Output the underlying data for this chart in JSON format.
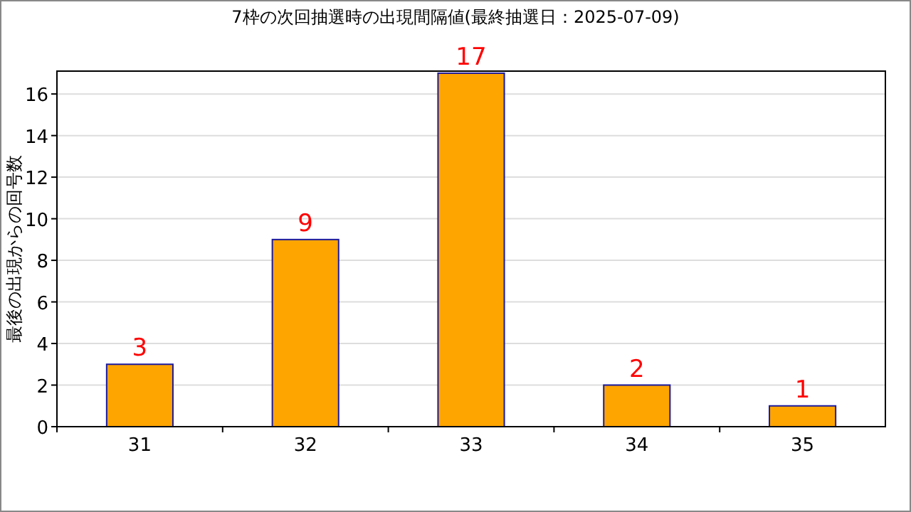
{
  "chart_data": {
    "type": "bar",
    "title": "7枠の次回抽選時の出現間隔値(最終抽選日：2025-07-09)",
    "ylabel": "最後の出現からの回号数",
    "categories": [
      "31",
      "32",
      "33",
      "34",
      "35"
    ],
    "values": [
      3,
      9,
      17,
      2,
      1
    ],
    "color": "#ffa500",
    "ylim": [
      0,
      17.1
    ],
    "yticks": [
      0,
      2,
      4,
      6,
      8,
      10,
      12,
      14,
      16
    ],
    "grid": "y",
    "data_labels": true
  }
}
